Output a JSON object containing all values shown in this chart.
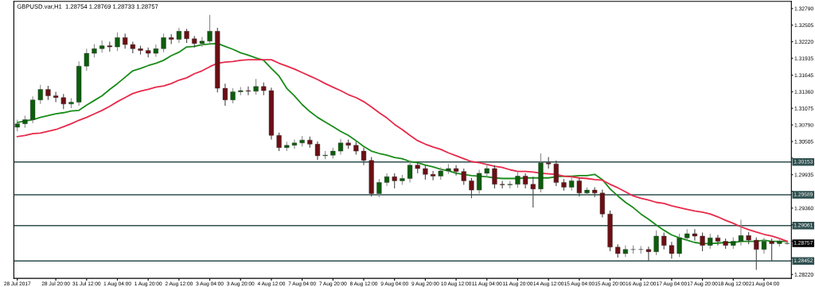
{
  "chart_data": {
    "type": "candlestick",
    "title": "GBPUSD.var,H1  1.28754 1.28769 1.28733 1.28757",
    "categories": [
      "28 Jul 2017",
      null,
      null,
      null,
      null,
      "28 Jul 20:00",
      null,
      null,
      null,
      "31 Jul 12:00",
      null,
      null,
      null,
      "1 Aug 04:00",
      null,
      null,
      null,
      "1 Aug 20:00",
      null,
      null,
      null,
      "2 Aug 12:00",
      null,
      null,
      null,
      "3 Aug 04:00",
      null,
      null,
      null,
      "3 Aug 20:00",
      null,
      null,
      null,
      "4 Aug 12:00",
      null,
      null,
      null,
      "7 Aug 04:00",
      null,
      null,
      null,
      "7 Aug 20:00",
      null,
      null,
      null,
      "8 Aug 12:00",
      null,
      null,
      null,
      "9 Aug 04:00",
      null,
      null,
      null,
      "9 Aug 20:00",
      null,
      null,
      null,
      "10 Aug 12:00",
      null,
      null,
      null,
      "11 Aug 04:00",
      null,
      null,
      null,
      "11 Aug 20:00",
      null,
      null,
      null,
      "14 Aug 12:00",
      null,
      null,
      null,
      "15 Aug 04:00",
      null,
      null,
      null,
      "15 Aug 20:00",
      null,
      null,
      null,
      "16 Aug 12:00",
      null,
      null,
      null,
      "17 Aug 04:00",
      null,
      null,
      null,
      "17 Aug 20:00",
      null,
      null,
      null,
      "18 Aug 12:00",
      null,
      null,
      null,
      "21 Aug 04:00",
      null,
      null,
      null
    ],
    "ohlc": [
      [
        1.3075,
        1.3088,
        1.3068,
        1.3081
      ],
      [
        1.3081,
        1.3095,
        1.3074,
        1.3088
      ],
      [
        1.3088,
        1.3128,
        1.3082,
        1.3122
      ],
      [
        1.3122,
        1.3148,
        1.3115,
        1.314
      ],
      [
        1.314,
        1.3146,
        1.3122,
        1.3129
      ],
      [
        1.3129,
        1.3136,
        1.3118,
        1.3126
      ],
      [
        1.3126,
        1.3132,
        1.3106,
        1.3115
      ],
      [
        1.3115,
        1.3125,
        1.3108,
        1.3118
      ],
      [
        1.3118,
        1.3188,
        1.3112,
        1.318
      ],
      [
        1.318,
        1.321,
        1.3172,
        1.3202
      ],
      [
        1.3202,
        1.3218,
        1.3195,
        1.321
      ],
      [
        1.321,
        1.3224,
        1.3203,
        1.3215
      ],
      [
        1.3215,
        1.3222,
        1.3205,
        1.3213
      ],
      [
        1.3213,
        1.3238,
        1.3206,
        1.3229
      ],
      [
        1.3229,
        1.3236,
        1.321,
        1.3217
      ],
      [
        1.3217,
        1.3222,
        1.3202,
        1.321
      ],
      [
        1.321,
        1.3215,
        1.32,
        1.3207
      ],
      [
        1.3207,
        1.3212,
        1.3195,
        1.3202
      ],
      [
        1.3202,
        1.3217,
        1.3196,
        1.321
      ],
      [
        1.321,
        1.3236,
        1.3204,
        1.3229
      ],
      [
        1.3229,
        1.3235,
        1.3218,
        1.3226
      ],
      [
        1.3226,
        1.3246,
        1.322,
        1.324
      ],
      [
        1.324,
        1.3244,
        1.322,
        1.3227
      ],
      [
        1.3227,
        1.3232,
        1.3212,
        1.3219
      ],
      [
        1.3219,
        1.323,
        1.3213,
        1.3223
      ],
      [
        1.3223,
        1.3268,
        1.3218,
        1.324
      ],
      [
        1.324,
        1.3246,
        1.3135,
        1.3142
      ],
      [
        1.3142,
        1.315,
        1.3112,
        1.3122
      ],
      [
        1.3122,
        1.3142,
        1.3116,
        1.3136
      ],
      [
        1.3136,
        1.3144,
        1.313,
        1.3138
      ],
      [
        1.3138,
        1.3145,
        1.313,
        1.3137
      ],
      [
        1.3137,
        1.3158,
        1.3131,
        1.3145
      ],
      [
        1.3145,
        1.3152,
        1.313,
        1.3138
      ],
      [
        1.3138,
        1.3143,
        1.3054,
        1.3061
      ],
      [
        1.3061,
        1.3066,
        1.3034,
        1.304
      ],
      [
        1.304,
        1.305,
        1.3034,
        1.3044
      ],
      [
        1.3044,
        1.3054,
        1.3038,
        1.3048
      ],
      [
        1.3048,
        1.306,
        1.3042,
        1.3053
      ],
      [
        1.3053,
        1.3059,
        1.304,
        1.3046
      ],
      [
        1.3046,
        1.3051,
        1.3019,
        1.3026
      ],
      [
        1.3026,
        1.3034,
        1.302,
        1.3027
      ],
      [
        1.3027,
        1.304,
        1.3021,
        1.3034
      ],
      [
        1.3034,
        1.3055,
        1.3028,
        1.3048
      ],
      [
        1.3048,
        1.3054,
        1.3038,
        1.3044
      ],
      [
        1.3044,
        1.305,
        1.3028,
        1.3034
      ],
      [
        1.3034,
        1.304,
        1.301,
        1.3018
      ],
      [
        1.3018,
        1.3024,
        1.2956,
        1.2961
      ],
      [
        1.2961,
        1.2986,
        1.2955,
        1.298
      ],
      [
        1.298,
        1.2996,
        1.2974,
        1.299
      ],
      [
        1.299,
        1.2996,
        1.297,
        1.2983
      ],
      [
        1.2983,
        1.2993,
        1.2976,
        1.2987
      ],
      [
        1.2987,
        1.3018,
        1.298,
        1.301
      ],
      [
        1.301,
        1.3016,
        1.2996,
        1.3004
      ],
      [
        1.3004,
        1.301,
        1.2985,
        1.2994
      ],
      [
        1.2994,
        1.3,
        1.2984,
        1.2991
      ],
      [
        1.2991,
        1.3006,
        1.2985,
        1.3
      ],
      [
        1.3,
        1.3012,
        1.2995,
        1.3004
      ],
      [
        1.3004,
        1.301,
        1.2992,
        1.2999
      ],
      [
        1.2999,
        1.3004,
        1.2976,
        1.2983
      ],
      [
        1.2983,
        1.2988,
        1.2953,
        1.2967
      ],
      [
        1.2967,
        1.3002,
        1.2961,
        1.2996
      ],
      [
        1.2996,
        1.3012,
        1.299,
        1.3004
      ],
      [
        1.3004,
        1.301,
        1.297,
        1.2977
      ],
      [
        1.2977,
        1.2983,
        1.297,
        1.2976
      ],
      [
        1.2976,
        1.2983,
        1.297,
        1.2977
      ],
      [
        1.2977,
        1.2998,
        1.2971,
        1.2991
      ],
      [
        1.2991,
        1.2996,
        1.297,
        1.2977
      ],
      [
        1.2977,
        1.299,
        1.2937,
        1.2969
      ],
      [
        1.2969,
        1.303,
        1.2963,
        1.3014
      ],
      [
        1.3014,
        1.3024,
        1.3004,
        1.3012
      ],
      [
        1.3012,
        1.3018,
        1.2974,
        1.298
      ],
      [
        1.298,
        1.2986,
        1.2966,
        1.2972
      ],
      [
        1.2972,
        1.299,
        1.2966,
        1.2983
      ],
      [
        1.2983,
        1.2988,
        1.2956,
        1.2962
      ],
      [
        1.2962,
        1.2972,
        1.2958,
        1.2967
      ],
      [
        1.2967,
        1.2972,
        1.2955,
        1.2962
      ],
      [
        1.2962,
        1.2968,
        1.292,
        1.2926
      ],
      [
        1.2926,
        1.2932,
        1.2862,
        1.2869
      ],
      [
        1.2869,
        1.2874,
        1.2851,
        1.2858
      ],
      [
        1.2858,
        1.2872,
        1.2852,
        1.2865
      ],
      [
        1.2865,
        1.2872,
        1.2858,
        1.2865
      ],
      [
        1.2865,
        1.2871,
        1.2858,
        1.2865
      ],
      [
        1.2865,
        1.287,
        1.2846,
        1.2861
      ],
      [
        1.2861,
        1.2898,
        1.2855,
        1.2888
      ],
      [
        1.2888,
        1.2894,
        1.2865,
        1.2872
      ],
      [
        1.2872,
        1.2878,
        1.2849,
        1.2858
      ],
      [
        1.2858,
        1.2892,
        1.2852,
        1.2885
      ],
      [
        1.2885,
        1.29,
        1.288,
        1.2892
      ],
      [
        1.2892,
        1.29,
        1.288,
        1.2888
      ],
      [
        1.2888,
        1.2894,
        1.2862,
        1.2872
      ],
      [
        1.2872,
        1.2892,
        1.2866,
        1.2885
      ],
      [
        1.2885,
        1.289,
        1.2872,
        1.2879
      ],
      [
        1.2879,
        1.2884,
        1.2866,
        1.2872
      ],
      [
        1.2872,
        1.2886,
        1.2866,
        1.2879
      ],
      [
        1.2879,
        1.2916,
        1.2872,
        1.2889
      ],
      [
        1.2889,
        1.2895,
        1.2874,
        1.2881
      ],
      [
        1.2881,
        1.2886,
        1.283,
        1.2865
      ],
      [
        1.2865,
        1.2885,
        1.2858,
        1.2879
      ],
      [
        1.2879,
        1.2884,
        1.2845,
        1.2875
      ],
      [
        1.2875,
        1.2885,
        1.287,
        1.2879
      ],
      [
        1.28754,
        1.28769,
        1.28733,
        1.28757
      ]
    ],
    "series": [
      {
        "type": "line",
        "color": "#1a8c1a",
        "values": [
          1.3083,
          1.3086,
          1.3088,
          1.3092,
          1.3095,
          1.3098,
          1.31,
          1.3103,
          1.3104,
          1.3113,
          1.3121,
          1.3129,
          1.314,
          1.315,
          1.3161,
          1.3172,
          1.3176,
          1.3181,
          1.3185,
          1.319,
          1.3198,
          1.3204,
          1.3213,
          1.3214,
          1.3217,
          1.3218,
          1.3219,
          1.3214,
          1.3209,
          1.3203,
          1.3199,
          1.3194,
          1.319,
          1.3176,
          1.3163,
          1.3142,
          1.3129,
          1.3114,
          1.3102,
          1.3092,
          1.3084,
          1.3076,
          1.3068,
          1.3061,
          1.3052,
          1.3042,
          1.3034,
          1.303,
          1.3027,
          1.3023,
          1.3021,
          1.3016,
          1.3014,
          1.301,
          1.3007,
          1.3003,
          1.3,
          1.2996,
          1.2994,
          1.2992,
          1.2991,
          1.299,
          1.2988,
          1.2987,
          1.2987,
          1.2987,
          1.2988,
          1.2988,
          1.2988,
          1.2988,
          1.299,
          1.2991,
          1.2991,
          1.2992,
          1.2992,
          1.2994,
          1.2985,
          1.2969,
          1.2957,
          1.2946,
          1.2937,
          1.2926,
          1.2917,
          1.2907,
          1.2898,
          1.289,
          1.2885,
          1.2881,
          1.2877,
          1.2875,
          1.2875,
          1.2876,
          1.2877,
          1.2877,
          1.2879,
          1.2879,
          1.2879,
          1.2881,
          1.2879,
          1.2879,
          1.2879
        ]
      },
      {
        "type": "line",
        "color": "#e8294a",
        "values": [
          1.3059,
          1.3061,
          1.3064,
          1.3065,
          1.3068,
          1.3071,
          1.3076,
          1.3081,
          1.3087,
          1.3092,
          1.3098,
          1.3104,
          1.3111,
          1.3119,
          1.3126,
          1.3133,
          1.3137,
          1.314,
          1.3144,
          1.3146,
          1.315,
          1.3156,
          1.316,
          1.3167,
          1.3172,
          1.3179,
          1.3185,
          1.3187,
          1.3188,
          1.319,
          1.3191,
          1.3191,
          1.3191,
          1.3191,
          1.3185,
          1.318,
          1.3175,
          1.3169,
          1.3163,
          1.3157,
          1.315,
          1.3144,
          1.3138,
          1.3131,
          1.3126,
          1.3119,
          1.311,
          1.31,
          1.3091,
          1.308,
          1.3071,
          1.3061,
          1.3052,
          1.3046,
          1.3041,
          1.3037,
          1.3031,
          1.3026,
          1.3021,
          1.3016,
          1.3014,
          1.3011,
          1.3008,
          1.3006,
          1.3002,
          1.2999,
          1.2999,
          1.2998,
          1.2996,
          1.2995,
          1.2994,
          1.2991,
          1.299,
          1.2988,
          1.2987,
          1.2985,
          1.2984,
          1.2977,
          1.2971,
          1.2964,
          1.2957,
          1.2953,
          1.295,
          1.2946,
          1.2944,
          1.294,
          1.2937,
          1.2934,
          1.2931,
          1.2929,
          1.2926,
          1.2921,
          1.2915,
          1.291,
          1.2904,
          1.2899,
          1.2895,
          1.2891,
          1.2888,
          1.2884,
          1.2879
        ]
      }
    ],
    "ylim": [
      1.28153,
      1.32912
    ],
    "yticks": [
      {
        "value": 1.3279,
        "label": "1.32790"
      },
      {
        "value": 1.32505,
        "label": "1.32505"
      },
      {
        "value": 1.3222,
        "label": "1.32220"
      },
      {
        "value": 1.31935,
        "label": "1.31935"
      },
      {
        "value": 1.31645,
        "label": "1.31645"
      },
      {
        "value": 1.3136,
        "label": "1.31360"
      },
      {
        "value": 1.31075,
        "label": "1.31075"
      },
      {
        "value": 1.3079,
        "label": "1.30790"
      },
      {
        "value": 1.30505,
        "label": "1.30505"
      },
      {
        "value": 1.3022,
        "label": null
      },
      {
        "value": 1.29935,
        "label": "1.29935"
      },
      {
        "value": 1.2965,
        "label": null
      },
      {
        "value": 1.2936,
        "label": "1.29360"
      },
      {
        "value": 1.29075,
        "label": null
      },
      {
        "value": 1.2879,
        "label": null
      },
      {
        "value": 1.28505,
        "label": null
      },
      {
        "value": 1.2822,
        "label": "1.28220"
      }
    ],
    "ref_lines": [
      {
        "axis": "y",
        "value": 1.30153,
        "label": "1.30153",
        "color": "#2f4f4f"
      },
      {
        "axis": "y",
        "value": 1.29589,
        "label": "1.29589",
        "color": "#2f4f4f"
      },
      {
        "axis": "y",
        "value": 1.29061,
        "label": "1.29061",
        "color": "#2f4f4f"
      },
      {
        "axis": "y",
        "value": 1.28452,
        "label": "1.28452",
        "color": "#2f4f4f"
      }
    ],
    "annotations": [
      {
        "text": "1.28757",
        "y": 1.28757
      }
    ]
  }
}
